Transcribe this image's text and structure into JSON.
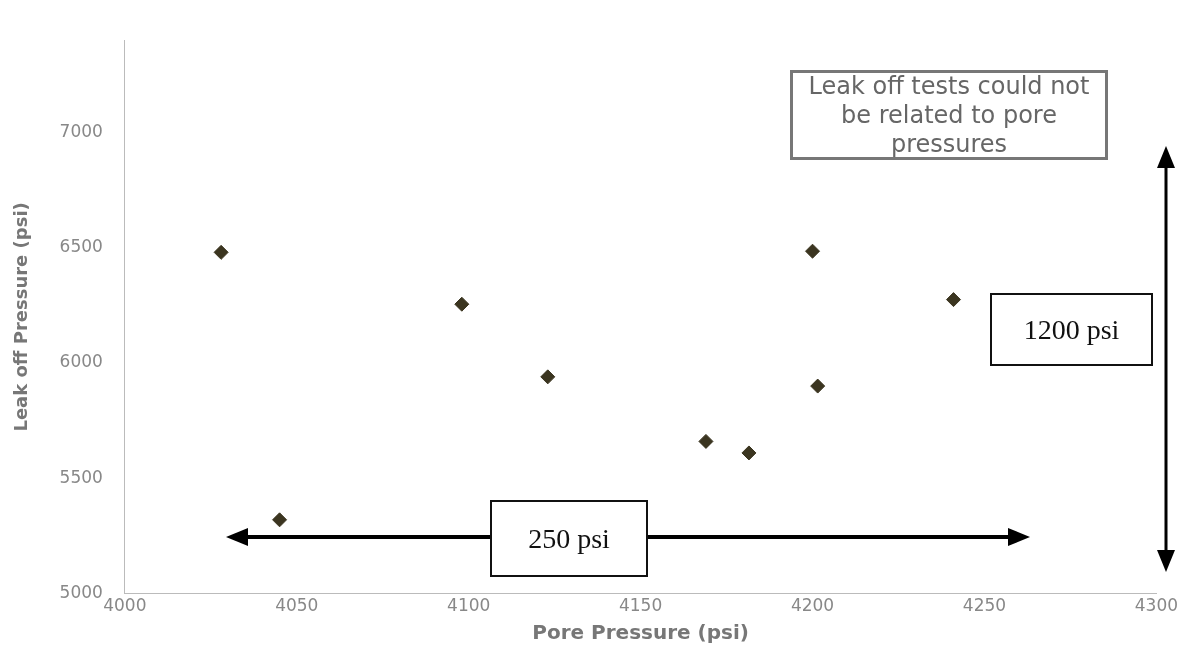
{
  "chart_data": {
    "type": "scatter",
    "xlabel": "Pore Pressure (psi)",
    "ylabel": "Leak off Pressure (psi)",
    "x": [
      4028,
      4045,
      4098,
      4123,
      4169,
      4181.5,
      4200,
      4201.5,
      4241
    ],
    "series": [
      {
        "color": "#3b3520",
        "values": [
          6480,
          5320,
          6255,
          5940,
          5660,
          5610,
          6485,
          5900,
          6275
        ]
      }
    ],
    "xlim": [
      4000,
      4300
    ],
    "xticks": [
      4000,
      4050,
      4100,
      4150,
      4200,
      4250,
      4300
    ],
    "ylim": [
      5000,
      7400
    ],
    "yticks": [
      5000,
      5500,
      6000,
      6500,
      7000
    ],
    "marker": "diamond",
    "grid": false,
    "legend": false,
    "annotations": [
      "Leak off tests could not be related to pore pressures",
      "1200 psi",
      "250 psi"
    ]
  }
}
